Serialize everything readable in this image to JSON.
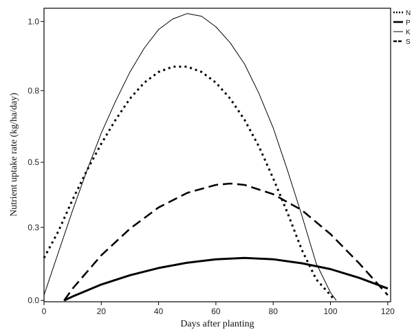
{
  "chart_data": {
    "type": "line",
    "xlabel": "Days after planting",
    "ylabel": "Nutrient uptake rate (kg/ha/day)",
    "xlim": [
      0,
      121
    ],
    "ylim": [
      -0.005,
      1.1
    ],
    "x_ticks": [
      0,
      20,
      40,
      60,
      80,
      100,
      120
    ],
    "y_ticks": [
      {
        "value": 0.0,
        "label": "0.0"
      },
      {
        "value": 0.275,
        "label": "0.3"
      },
      {
        "value": 0.52,
        "label": "0.5"
      },
      {
        "value": 0.79,
        "label": "0.8"
      },
      {
        "value": 1.05,
        "label": "1.0"
      }
    ],
    "legend_position": "top-right",
    "grid": false,
    "series": [
      {
        "name": "N",
        "style": "dotted",
        "color": "#000000",
        "x": [
          0,
          5,
          10,
          15,
          20,
          25,
          30,
          35,
          40,
          45,
          50,
          55,
          60,
          65,
          70,
          75,
          80,
          85,
          90,
          95,
          100,
          101.5
        ],
        "y": [
          0.16,
          0.26,
          0.38,
          0.49,
          0.59,
          0.68,
          0.76,
          0.82,
          0.86,
          0.88,
          0.88,
          0.86,
          0.82,
          0.76,
          0.68,
          0.58,
          0.46,
          0.33,
          0.19,
          0.08,
          0.02,
          0.0
        ]
      },
      {
        "name": "P",
        "style": "solid-thick",
        "color": "#000000",
        "x": [
          7,
          10,
          20,
          30,
          40,
          50,
          60,
          70,
          80,
          90,
          100,
          110,
          120
        ],
        "y": [
          0.0,
          0.015,
          0.06,
          0.095,
          0.122,
          0.142,
          0.155,
          0.16,
          0.155,
          0.14,
          0.118,
          0.085,
          0.045
        ]
      },
      {
        "name": "K",
        "style": "solid-thin",
        "color": "#000000",
        "x": [
          0,
          5,
          10,
          15,
          20,
          25,
          30,
          35,
          40,
          45,
          50,
          55,
          60,
          65,
          70,
          75,
          80,
          85,
          90,
          95,
          100,
          102
        ],
        "y": [
          0.02,
          0.18,
          0.34,
          0.49,
          0.63,
          0.75,
          0.86,
          0.95,
          1.02,
          1.06,
          1.08,
          1.07,
          1.03,
          0.97,
          0.89,
          0.78,
          0.65,
          0.49,
          0.32,
          0.14,
          0.03,
          0.0
        ]
      },
      {
        "name": "S",
        "style": "dashed",
        "color": "#000000",
        "x": [
          7,
          10,
          20,
          30,
          40,
          50,
          60,
          65,
          70,
          80,
          90,
          100,
          110,
          120
        ],
        "y": [
          0.0,
          0.045,
          0.17,
          0.27,
          0.35,
          0.405,
          0.435,
          0.44,
          0.435,
          0.4,
          0.34,
          0.25,
          0.14,
          0.02
        ]
      }
    ]
  }
}
